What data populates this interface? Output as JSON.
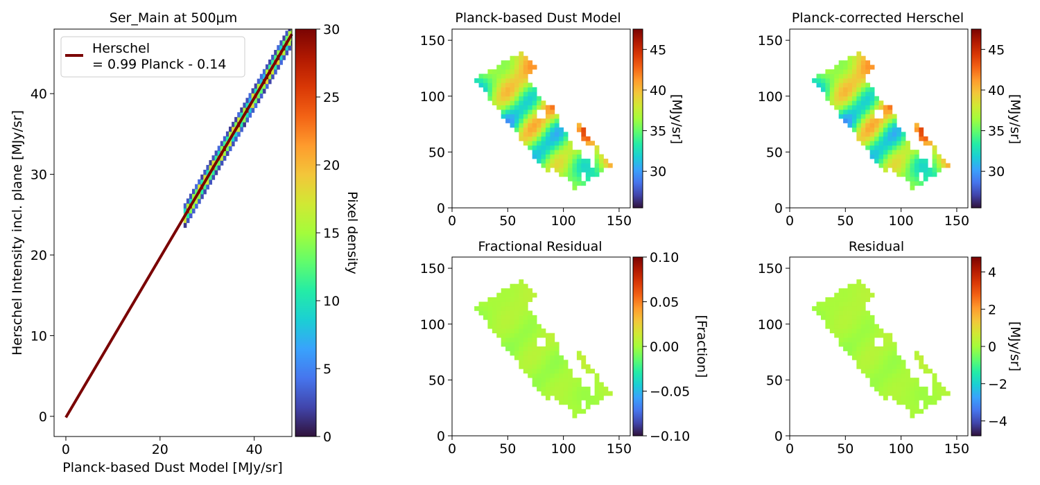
{
  "figure": {
    "colormaps": {
      "turbo": [
        "#30123b",
        "#4145ab",
        "#4675ed",
        "#39a2fc",
        "#1bcfd4",
        "#24eca6",
        "#61fc6c",
        "#a4fc3b",
        "#d1e834",
        "#f3c63a",
        "#fe9b2d",
        "#f36315",
        "#d93806",
        "#b11901",
        "#7a0403"
      ]
    },
    "map_footprint": {
      "note_fields_only": "white holes and polygon are image content",
      "polygon": [
        [
          20,
          115
        ],
        [
          63,
          141
        ],
        [
          143,
          38
        ],
        [
          101,
          11
        ]
      ]
    }
  },
  "chart_data": [
    {
      "type": "heatmap",
      "title": "Ser_Main at 500μm",
      "xlabel": "Planck-based Dust Model [MJy/sr]",
      "ylabel": "Herschel Intensity incl. plane [MJy/sr]",
      "xlim": [
        -2.5,
        48
      ],
      "ylim": [
        -2.5,
        48
      ],
      "xticks": [
        "0",
        "20",
        "40"
      ],
      "xtick_values": [
        0,
        20,
        40
      ],
      "yticks": [
        "0",
        "10",
        "20",
        "30",
        "40"
      ],
      "ytick_values": [
        0,
        10,
        20,
        30,
        40
      ],
      "density_range": [
        25,
        48
      ],
      "fit_line": {
        "slope": 0.99,
        "intercept": -0.14,
        "x_range": [
          0,
          48
        ]
      },
      "legend": {
        "placement": "upper-left",
        "line1": "Herschel",
        "line2": "= 0.99 Planck - 0.14"
      },
      "colorbar": {
        "label": "Pixel density",
        "range": [
          0,
          30
        ],
        "ticks": [
          "0",
          "5",
          "10",
          "15",
          "20",
          "25",
          "30"
        ],
        "tick_values": [
          0,
          5,
          10,
          15,
          20,
          25,
          30
        ]
      },
      "grid": false
    },
    {
      "type": "heatmap",
      "title": "Planck-based Dust Model",
      "xlim": [
        0,
        160
      ],
      "ylim": [
        0,
        160
      ],
      "xticks": [
        "0",
        "50",
        "100",
        "150"
      ],
      "yticks": [
        "0",
        "50",
        "100",
        "150"
      ],
      "colorbar": {
        "label": "[MJy/sr]",
        "range": [
          25.5,
          47.5
        ],
        "ticks": [
          "30",
          "35",
          "40",
          "45"
        ],
        "tick_values": [
          30,
          35,
          40,
          45
        ]
      },
      "value_range": [
        25.5,
        47.5
      ]
    },
    {
      "type": "heatmap",
      "title": "Planck-corrected Herschel",
      "xlim": [
        0,
        160
      ],
      "ylim": [
        0,
        160
      ],
      "xticks": [
        "0",
        "50",
        "100",
        "150"
      ],
      "yticks": [
        "0",
        "50",
        "100",
        "150"
      ],
      "colorbar": {
        "label": "[MJy/sr]",
        "range": [
          25.5,
          47.5
        ],
        "ticks": [
          "30",
          "35",
          "40",
          "45"
        ],
        "tick_values": [
          30,
          35,
          40,
          45
        ]
      },
      "value_range": [
        25.5,
        47.5
      ]
    },
    {
      "type": "heatmap",
      "title": "Fractional Residual",
      "xlim": [
        0,
        160
      ],
      "ylim": [
        0,
        160
      ],
      "xticks": [
        "0",
        "50",
        "100",
        "150"
      ],
      "yticks": [
        "0",
        "50",
        "100",
        "150"
      ],
      "colorbar": {
        "label": "[Fraction]",
        "range": [
          -0.1,
          0.1
        ],
        "ticks": [
          "−0.10",
          "−0.05",
          "0.00",
          "0.05",
          "0.10"
        ],
        "tick_values": [
          -0.1,
          -0.05,
          0,
          0.05,
          0.1
        ]
      },
      "value_range": [
        -0.02,
        0.02
      ]
    },
    {
      "type": "heatmap",
      "title": "Residual",
      "xlim": [
        0,
        160
      ],
      "ylim": [
        0,
        160
      ],
      "xticks": [
        "0",
        "50",
        "100",
        "150"
      ],
      "yticks": [
        "0",
        "50",
        "100",
        "150"
      ],
      "colorbar": {
        "label": "[MJy/sr]",
        "range": [
          -4.8,
          4.8
        ],
        "ticks": [
          "−4",
          "−2",
          "0",
          "2",
          "4"
        ],
        "tick_values": [
          -4,
          -2,
          0,
          2,
          4
        ]
      },
      "value_range": [
        -0.8,
        0.8
      ]
    }
  ]
}
